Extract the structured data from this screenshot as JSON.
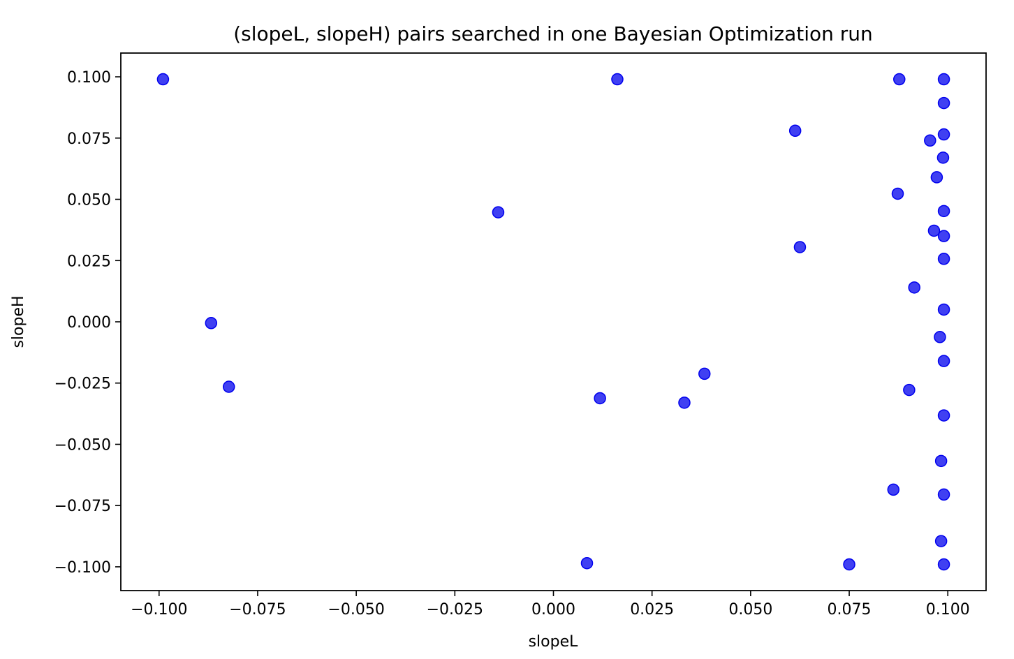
{
  "chart_data": {
    "type": "scatter",
    "title": "(slopeL, slopeH) pairs searched in one Bayesian Optimization run",
    "xlabel": "slopeL",
    "ylabel": "slopeH",
    "xlim": [
      -0.1097,
      0.1097
    ],
    "ylim": [
      -0.1097,
      0.1097
    ],
    "xticks": [
      -0.1,
      -0.075,
      -0.05,
      -0.025,
      0.0,
      0.025,
      0.05,
      0.075,
      0.1
    ],
    "xtick_labels": [
      "−0.100",
      "−0.075",
      "−0.050",
      "−0.025",
      "0.000",
      "0.025",
      "0.050",
      "0.075",
      "0.100"
    ],
    "yticks": [
      0.1,
      0.075,
      0.05,
      0.025,
      0.0,
      -0.025,
      -0.05,
      -0.075,
      -0.1
    ],
    "ytick_labels": [
      "0.100",
      "0.075",
      "0.050",
      "0.025",
      "0.000",
      "−0.025",
      "−0.050",
      "−0.075",
      "−0.100"
    ],
    "grid": false,
    "marker_color": "#0000ee",
    "marker_alpha": 0.75,
    "points": [
      {
        "x": -0.099,
        "y": 0.099
      },
      {
        "x": 0.0162,
        "y": 0.099
      },
      {
        "x": 0.0877,
        "y": 0.099
      },
      {
        "x": 0.099,
        "y": 0.099
      },
      {
        "x": 0.099,
        "y": 0.0893
      },
      {
        "x": 0.099,
        "y": 0.0765
      },
      {
        "x": 0.0613,
        "y": 0.078
      },
      {
        "x": 0.0955,
        "y": 0.074
      },
      {
        "x": 0.0988,
        "y": 0.067
      },
      {
        "x": 0.0972,
        "y": 0.059
      },
      {
        "x": 0.0873,
        "y": 0.0523
      },
      {
        "x": -0.014,
        "y": 0.0447
      },
      {
        "x": 0.099,
        "y": 0.0452
      },
      {
        "x": 0.0965,
        "y": 0.0372
      },
      {
        "x": 0.099,
        "y": 0.035
      },
      {
        "x": 0.0625,
        "y": 0.0305
      },
      {
        "x": 0.099,
        "y": 0.0257
      },
      {
        "x": 0.0915,
        "y": 0.014
      },
      {
        "x": 0.099,
        "y": 0.005
      },
      {
        "x": -0.0868,
        "y": -0.0005
      },
      {
        "x": 0.098,
        "y": -0.0062
      },
      {
        "x": 0.099,
        "y": -0.016
      },
      {
        "x": 0.0383,
        "y": -0.0212
      },
      {
        "x": -0.0823,
        "y": -0.0265
      },
      {
        "x": 0.0902,
        "y": -0.0278
      },
      {
        "x": 0.0118,
        "y": -0.0312
      },
      {
        "x": 0.0332,
        "y": -0.033
      },
      {
        "x": 0.099,
        "y": -0.0382
      },
      {
        "x": 0.0983,
        "y": -0.0568
      },
      {
        "x": 0.0862,
        "y": -0.0685
      },
      {
        "x": 0.099,
        "y": -0.0705
      },
      {
        "x": 0.0983,
        "y": -0.0895
      },
      {
        "x": 0.0085,
        "y": -0.0985
      },
      {
        "x": 0.075,
        "y": -0.099
      },
      {
        "x": 0.099,
        "y": -0.099
      }
    ]
  }
}
